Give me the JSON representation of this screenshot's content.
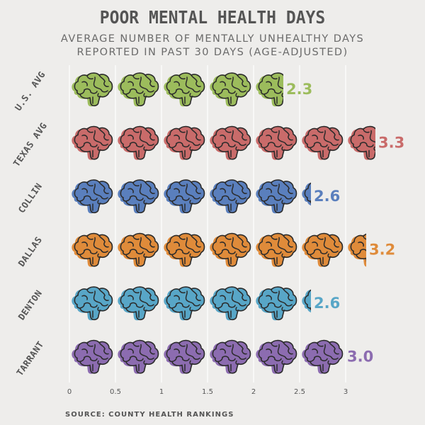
{
  "header": {
    "title": "POOR MENTAL HEALTH DAYS",
    "subtitle_line1": "AVERAGE NUMBER OF MENTALLY UNHEALTHY DAYS",
    "subtitle_line2": "REPORTED IN PAST 30 DAYS (AGE-ADJUSTED)"
  },
  "source": "SOURCE: COUNTY HEALTH RANKINGS",
  "chart_data": {
    "type": "bar",
    "style": "pictograph",
    "icon": "brain-icon",
    "units_per_icon": 0.5,
    "title": "POOR MENTAL HEALTH DAYS",
    "subtitle": "AVERAGE NUMBER OF MENTALLY UNHEALTHY DAYS REPORTED IN PAST 30 DAYS (AGE-ADJUSTED)",
    "orientation": "horizontal",
    "categories": [
      "U.S. AVG",
      "TEXAS AVG",
      "COLLIN",
      "DALLAS",
      "DENTON",
      "TARRANT"
    ],
    "values": [
      2.3,
      3.3,
      2.6,
      3.2,
      2.6,
      3.0
    ],
    "value_labels": [
      "2.3",
      "3.3",
      "2.6",
      "3.2",
      "2.6",
      "3.0"
    ],
    "colors": [
      "#9cbc5c",
      "#c96b6a",
      "#5a7fbd",
      "#df8b3a",
      "#58a6c7",
      "#8c6cb0"
    ],
    "xlim": [
      0,
      3
    ],
    "xticks": [
      0,
      0.5,
      1,
      1.5,
      2,
      2.5,
      3
    ],
    "xtick_labels": [
      "0",
      "0.5",
      "1",
      "1.5",
      "2",
      "2.5",
      "3"
    ],
    "grid": true,
    "legend": "none"
  }
}
